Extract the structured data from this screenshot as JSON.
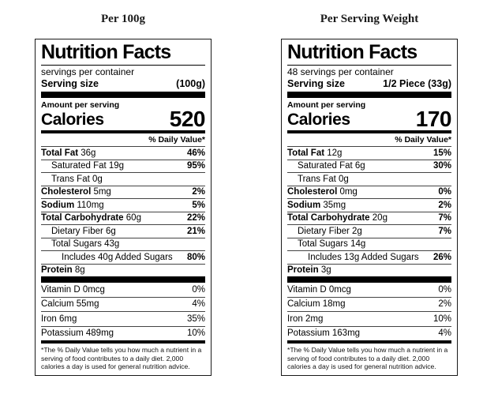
{
  "page": {
    "background": "#ffffff",
    "text_color": "#000000",
    "divider_color": "#000000"
  },
  "labels": [
    {
      "heading": "Per 100g",
      "title": "Nutrition Facts",
      "servings_line": "servings per container",
      "serving_size_label": "Serving size",
      "serving_size_value": "(100g)",
      "amount_label": "Amount per serving",
      "calories_label": "Calories",
      "calories_value": "520",
      "daily_value_header": "% Daily Value*",
      "nutrients": [
        {
          "name": "Total Fat",
          "amount": "36g",
          "dv": "46%",
          "indent": 0,
          "bold_name": true
        },
        {
          "name": "Saturated Fat",
          "amount": "19g",
          "dv": "95%",
          "indent": 1,
          "bold_name": false
        },
        {
          "name": "Trans Fat",
          "amount": "0g",
          "dv": "",
          "indent": 1,
          "bold_name": false
        },
        {
          "name": "Cholesterol",
          "amount": "5mg",
          "dv": "2%",
          "indent": 0,
          "bold_name": true
        },
        {
          "name": "Sodium",
          "amount": "110mg",
          "dv": "5%",
          "indent": 0,
          "bold_name": true
        },
        {
          "name": "Total Carbohydrate",
          "amount": "60g",
          "dv": "22%",
          "indent": 0,
          "bold_name": true
        },
        {
          "name": "Dietary Fiber",
          "amount": "6g",
          "dv": "21%",
          "indent": 1,
          "bold_name": false
        },
        {
          "name": "Total Sugars",
          "amount": "43g",
          "dv": "",
          "indent": 1,
          "bold_name": false
        },
        {
          "name": "Includes 40g Added Sugars",
          "amount": "",
          "dv": "80%",
          "indent": 2,
          "bold_name": false
        },
        {
          "name": "Protein",
          "amount": "8g",
          "dv": "",
          "indent": 0,
          "bold_name": true
        }
      ],
      "vitamins": [
        {
          "name": "Vitamin D 0mcg",
          "dv": "0%"
        },
        {
          "name": "Calcium 55mg",
          "dv": "4%"
        },
        {
          "name": "Iron 6mg",
          "dv": "35%"
        },
        {
          "name": "Potassium 489mg",
          "dv": "10%"
        }
      ],
      "footnote": "*The % Daily Value tells you how much a nutrient in a serving of food contributes to a daily diet. 2,000 calories a day is used for general nutrition advice."
    },
    {
      "heading": "Per Serving Weight",
      "title": "Nutrition Facts",
      "servings_line": "48 servings per container",
      "serving_size_label": "Serving size",
      "serving_size_value": "1/2 Piece (33g)",
      "amount_label": "Amount per serving",
      "calories_label": "Calories",
      "calories_value": "170",
      "daily_value_header": "% Daily Value*",
      "nutrients": [
        {
          "name": "Total Fat",
          "amount": "12g",
          "dv": "15%",
          "indent": 0,
          "bold_name": true
        },
        {
          "name": "Saturated Fat",
          "amount": "6g",
          "dv": "30%",
          "indent": 1,
          "bold_name": false
        },
        {
          "name": "Trans Fat",
          "amount": "0g",
          "dv": "",
          "indent": 1,
          "bold_name": false
        },
        {
          "name": "Cholesterol",
          "amount": "0mg",
          "dv": "0%",
          "indent": 0,
          "bold_name": true
        },
        {
          "name": "Sodium",
          "amount": "35mg",
          "dv": "2%",
          "indent": 0,
          "bold_name": true
        },
        {
          "name": "Total Carbohydrate",
          "amount": "20g",
          "dv": "7%",
          "indent": 0,
          "bold_name": true
        },
        {
          "name": "Dietary Fiber",
          "amount": "2g",
          "dv": "7%",
          "indent": 1,
          "bold_name": false
        },
        {
          "name": "Total Sugars",
          "amount": "14g",
          "dv": "",
          "indent": 1,
          "bold_name": false
        },
        {
          "name": "Includes 13g Added Sugars",
          "amount": "",
          "dv": "26%",
          "indent": 2,
          "bold_name": false
        },
        {
          "name": "Protein",
          "amount": "3g",
          "dv": "",
          "indent": 0,
          "bold_name": true
        }
      ],
      "vitamins": [
        {
          "name": "Vitamin D 0mcg",
          "dv": "0%"
        },
        {
          "name": "Calcium 18mg",
          "dv": "2%"
        },
        {
          "name": "Iron 2mg",
          "dv": "10%"
        },
        {
          "name": "Potassium 163mg",
          "dv": "4%"
        }
      ],
      "footnote": "*The % Daily Value tells you how much a nutrient in a serving of food contributes to a daily diet. 2,000 calories a day is used for general nutrition advice."
    }
  ]
}
